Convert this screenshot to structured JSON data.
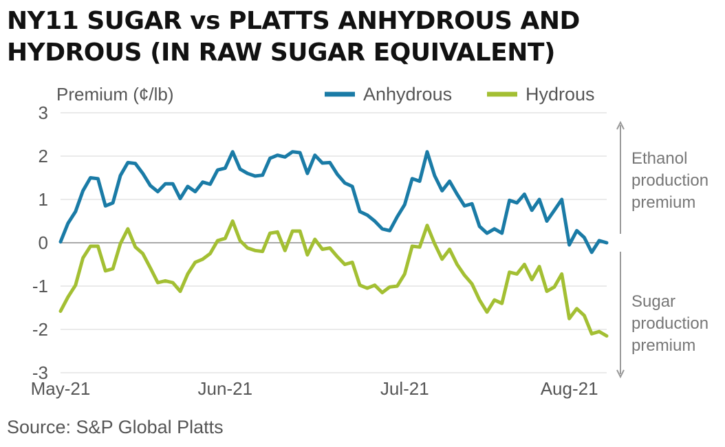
{
  "title": {
    "line1": "NY11 SUGAR vs PLATTS ANHYDROUS AND",
    "line2": "HYDROUS (IN RAW SUGAR EQUIVALENT)"
  },
  "source": "Source: S&P Global Platts",
  "colors": {
    "anhydrous": "#1a7ba6",
    "hydrous": "#a3bf33",
    "grid": "#d6d6d6",
    "zero_line": "#8c8c8c",
    "text": "#555555"
  },
  "annotations": {
    "upper": [
      "Ethanol",
      "production",
      "premium"
    ],
    "lower": [
      "Sugar",
      "production",
      "premium"
    ]
  },
  "chart_data": {
    "type": "line",
    "ylabel": "Premium (¢/lb)",
    "xlabel": "",
    "ylim": [
      -3,
      3
    ],
    "yticks": [
      "3",
      "2",
      "1",
      "0",
      "-1",
      "-2",
      "-3"
    ],
    "xticks": [
      {
        "label": "May-21",
        "index": 0
      },
      {
        "label": "Jun-21",
        "index": 22
      },
      {
        "label": "Jul-21",
        "index": 46
      },
      {
        "label": "Aug-21",
        "index": 68
      }
    ],
    "grid": true,
    "legend_position": "top-right",
    "series": [
      {
        "name": "Anhydrous",
        "values": [
          0.02,
          0.45,
          0.72,
          1.2,
          1.5,
          1.48,
          0.85,
          0.92,
          1.55,
          1.85,
          1.83,
          1.6,
          1.32,
          1.18,
          1.36,
          1.36,
          1.02,
          1.3,
          1.18,
          1.4,
          1.35,
          1.68,
          1.72,
          2.1,
          1.7,
          1.6,
          1.54,
          1.56,
          1.95,
          2.02,
          1.98,
          2.1,
          2.08,
          1.6,
          2.02,
          1.84,
          1.85,
          1.58,
          1.38,
          1.3,
          0.72,
          0.64,
          0.5,
          0.32,
          0.28,
          0.6,
          0.88,
          1.48,
          1.42,
          2.1,
          1.55,
          1.2,
          1.42,
          1.12,
          0.85,
          0.9,
          0.38,
          0.22,
          0.32,
          0.22,
          0.98,
          0.92,
          1.12,
          0.75,
          1.0,
          0.5,
          0.75,
          1.0,
          -0.05,
          0.28,
          0.12,
          -0.22,
          0.05,
          0.0
        ]
      },
      {
        "name": "Hydrous",
        "values": [
          -1.58,
          -1.25,
          -0.98,
          -0.35,
          -0.08,
          -0.08,
          -0.65,
          -0.6,
          -0.02,
          0.32,
          -0.1,
          -0.25,
          -0.58,
          -0.92,
          -0.88,
          -0.92,
          -1.12,
          -0.72,
          -0.45,
          -0.38,
          -0.25,
          0.05,
          0.1,
          0.5,
          0.05,
          -0.12,
          -0.18,
          -0.2,
          0.22,
          0.25,
          -0.18,
          0.27,
          0.27,
          -0.28,
          0.08,
          -0.15,
          -0.12,
          -0.32,
          -0.5,
          -0.45,
          -0.98,
          -1.05,
          -0.98,
          -1.15,
          -1.02,
          -1.0,
          -0.72,
          -0.08,
          -0.1,
          0.4,
          -0.02,
          -0.38,
          -0.15,
          -0.5,
          -0.75,
          -0.95,
          -1.32,
          -1.6,
          -1.32,
          -1.4,
          -0.68,
          -0.72,
          -0.5,
          -0.85,
          -0.55,
          -1.12,
          -1.02,
          -0.72,
          -1.75,
          -1.52,
          -1.68,
          -2.1,
          -2.05,
          -2.15
        ]
      }
    ]
  }
}
